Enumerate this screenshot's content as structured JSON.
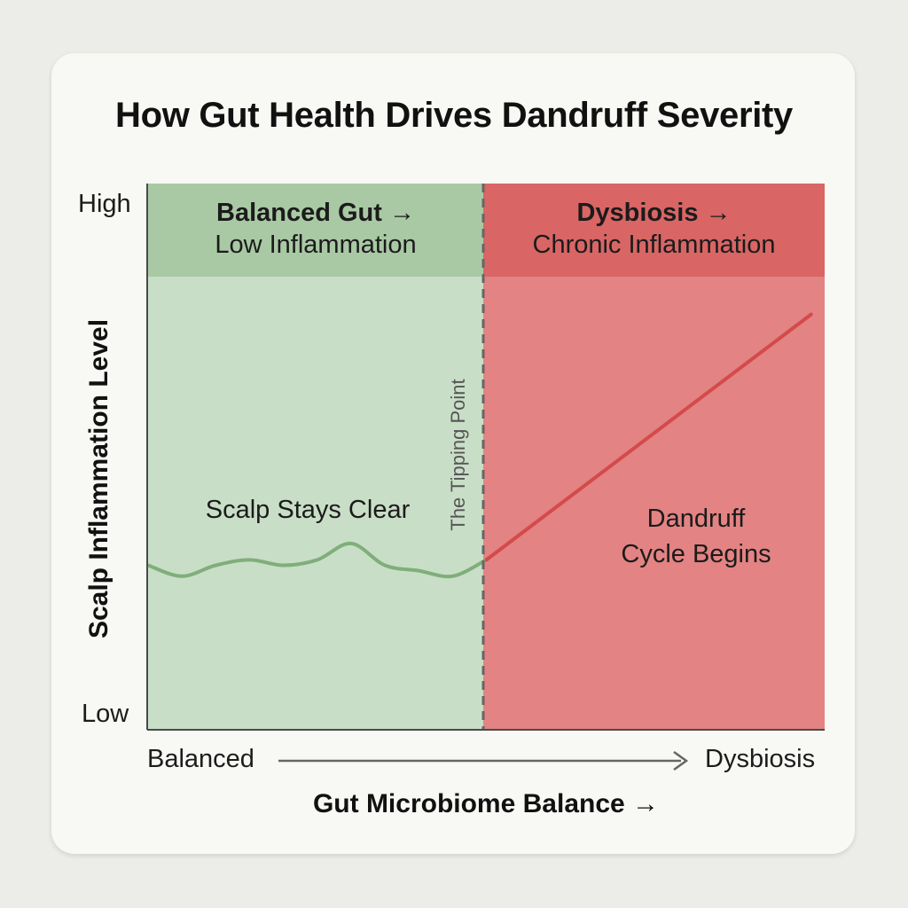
{
  "colors": {
    "balanced_fill": "#c9dec7",
    "balanced_header": "#a9c9a5",
    "dysbiosis_fill": "#e38383",
    "dysbiosis_header": "#d96565",
    "green_line": "#7fae7b",
    "red_line": "#d44a4a",
    "divider": "#666666"
  },
  "chart_data": {
    "type": "line",
    "title": "How Gut Health Drives Dandruff Severity",
    "ylabel": "Scalp Inflammation Level",
    "xlabel": "Gut Microbiome Balance →",
    "ytick_labels": [
      "Low",
      "High"
    ],
    "x_start_label": "Balanced",
    "x_end_label": "Dysbiosis",
    "xlim": [
      0,
      1
    ],
    "ylim": [
      0,
      1
    ],
    "threshold": {
      "x": 0.5,
      "label": "The Tipping Point"
    },
    "zones": [
      {
        "id": "balanced",
        "range": [
          0,
          0.5
        ],
        "heading_line1": "Balanced Gut →",
        "heading_line2": "Low Inflammation",
        "note": "Scalp Stays Clear"
      },
      {
        "id": "dysbiosis",
        "range": [
          0.5,
          1
        ],
        "heading_line1": "Dysbiosis →",
        "heading_line2": "Chronic Inflammation",
        "note_line1": "Dandruff",
        "note_line2": "Cycle Begins"
      }
    ],
    "series": [
      {
        "zone": "balanced",
        "style": "wavy",
        "x": [
          0,
          0.05,
          0.1,
          0.15,
          0.2,
          0.25,
          0.3,
          0.35,
          0.4,
          0.45,
          0.5
        ],
        "y": [
          0.3,
          0.28,
          0.3,
          0.31,
          0.3,
          0.31,
          0.34,
          0.3,
          0.29,
          0.28,
          0.31
        ]
      },
      {
        "zone": "dysbiosis",
        "style": "straight",
        "x": [
          0.5,
          0.98
        ],
        "y": [
          0.31,
          0.76
        ]
      }
    ],
    "grid": false
  }
}
